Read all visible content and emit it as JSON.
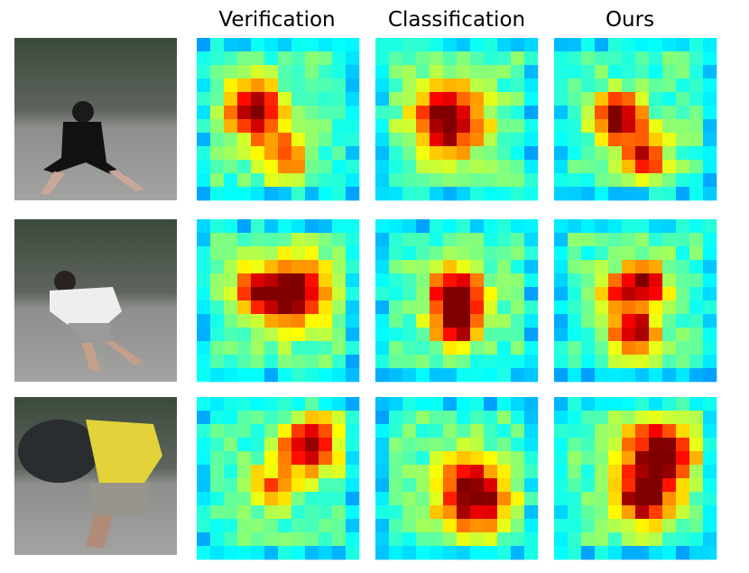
{
  "header": {
    "columns": [
      "Verification",
      "Classification",
      "Ours"
    ]
  }
}
